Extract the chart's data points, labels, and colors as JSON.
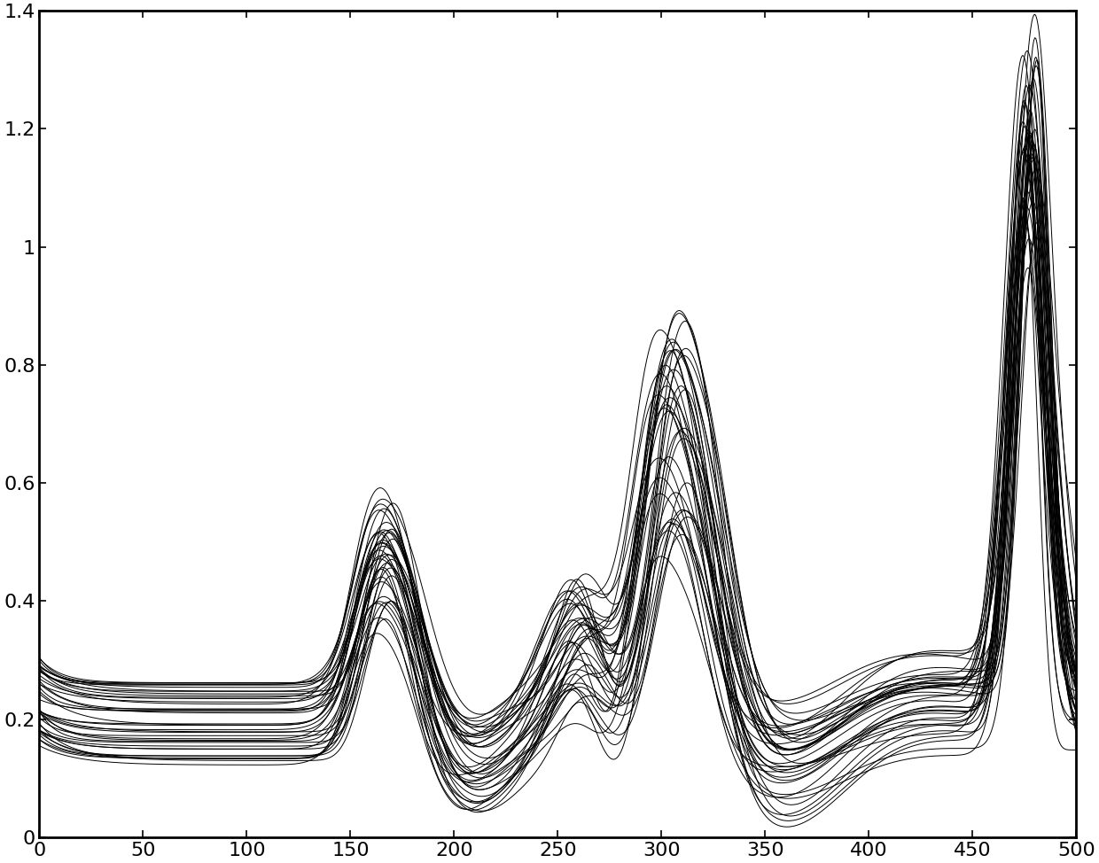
{
  "xlim": [
    0,
    500
  ],
  "ylim": [
    0,
    1.4
  ],
  "xticks": [
    0,
    50,
    100,
    150,
    200,
    250,
    300,
    350,
    400,
    450,
    500
  ],
  "yticks": [
    0,
    0.2,
    0.4,
    0.6,
    0.8,
    1.0,
    1.2,
    1.4
  ],
  "n_curves": 40,
  "line_color": "#000000",
  "line_alpha": 1.0,
  "line_width": 0.7,
  "background_color": "#ffffff",
  "figsize": [
    12.4,
    9.74
  ],
  "dpi": 100,
  "tick_fontsize": 16,
  "spine_linewidth": 2.0
}
